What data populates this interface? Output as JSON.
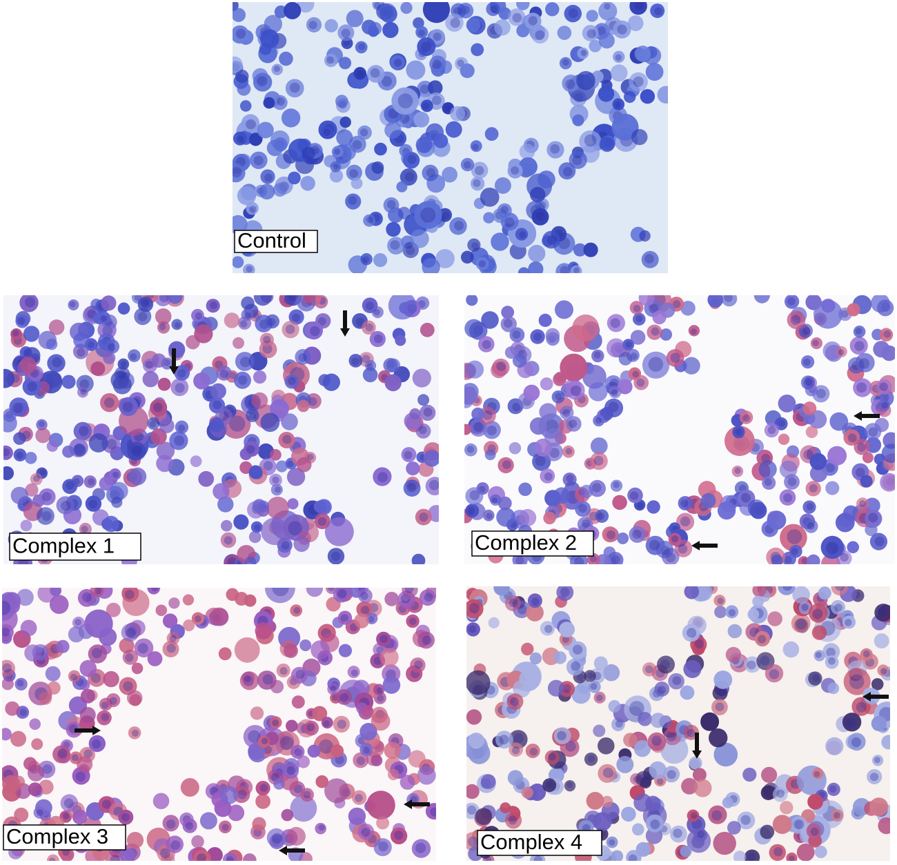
{
  "panels": [
    {
      "label": "Control"
    },
    {
      "label": "Complex 1"
    },
    {
      "label": "Complex 2"
    },
    {
      "label": "Complex 3"
    },
    {
      "label": "Complex 4"
    }
  ]
}
